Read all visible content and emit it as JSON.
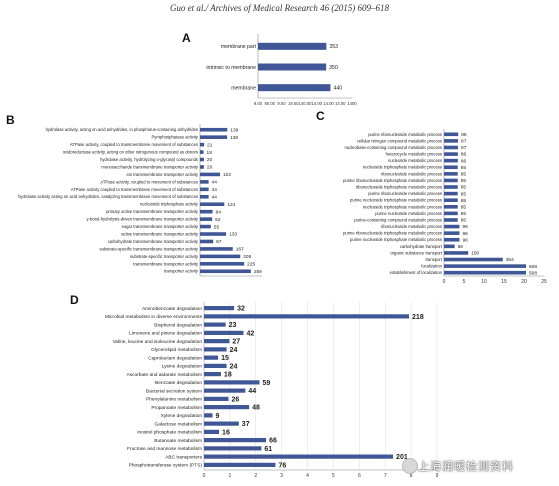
{
  "header": "Guo et al./ Archives of Medical Research 46 (2015) 609–618",
  "watermark": "上海润暖检测资料",
  "colors": {
    "bar": "#3f5796",
    "axis": "#888888",
    "grid": "#dddddd"
  },
  "chart_data": [
    {
      "panel": "A",
      "type": "bar",
      "orientation": "horizontal",
      "categories": [
        "membrane part",
        "intrinsic to membrane",
        "membrane"
      ],
      "values": [
        353,
        350,
        440
      ],
      "data_labels": [
        "353",
        "350",
        "440"
      ],
      "xscale": "log",
      "xlim": [
        9,
        1400
      ],
      "tick_labels": [
        "9.00",
        "90.00",
        "9.00",
        "19.00",
        "140.00",
        "14.00",
        "14.00",
        "14.00",
        "1400"
      ]
    },
    {
      "panel": "B",
      "type": "bar",
      "orientation": "horizontal",
      "categories": [
        "hydrolase activity, acting on acid anhydrides, in phosphorus-containing anhydrides",
        "Pyrophosphatase activity",
        "ATPase activity, coupled to transmembrane movement of substances",
        "oxidoreductase activity, acting on other nitrogenous compound as donors",
        "hydrolase activity, hydrolyzing o-glycosyl compounds",
        "monosaccharide transmembrane transporter activity",
        "ion transmembrane transporter activity",
        "ATPase activity, coupled to movement of substances",
        "ATPase activity coupled to transmembrane movement of substances",
        "hydrolase activity acting on acid anhydrides, catalyzing transmembrane movement of substances",
        "nucleoside triphosphate activity",
        "primary active transmembrane transporter activity",
        "γ-bond-hydrolysis-driven transmembrane transporter activity",
        "sugar transmembrane transporter activity",
        "active transmembrane transporter activity",
        "carbohydrate transmembrane transporter activity",
        "substrate-specific transmembrane transporter activity",
        "substrate-specific transporter activity",
        "transmembrane transporter activity",
        "transporter activity"
      ],
      "values": [
        139,
        138,
        21,
        18,
        20,
        20,
        102,
        44,
        44,
        44,
        124,
        64,
        62,
        55,
        133,
        67,
        167,
        205,
        225,
        259
      ],
      "data_labels": [
        "139",
        "138",
        "21",
        "18",
        "20",
        "20",
        "102",
        "44",
        "44",
        "44",
        "124",
        "64",
        "62",
        "55",
        "133",
        "67",
        "167",
        "205",
        "225",
        "259"
      ],
      "xlim": [
        0,
        250
      ]
    },
    {
      "panel": "C",
      "type": "bar",
      "orientation": "horizontal",
      "categories": [
        "purine ribonucleotide metabolic process",
        "cellular nitrogen compound metabolic process",
        "nucleobase-containing compound metabolic process",
        "heterocycle metabolic process",
        "nucleotide metabolic process",
        "nucleoside triphosphate metabolic process",
        "ribonucleotide metabolic process",
        "purine ribonucleoside triphosphate metabolic process",
        "ribonucleoside triphosphate metabolic process",
        "purine ribonucleotide metabolic process",
        "purine nucleoside triphosphate metabolic process",
        "nucleoside triphosphate metabolic process",
        "purine nucleotide metabolic process",
        "purine-containing compound metabolic process",
        "ribonucleotide metabolic process",
        "purine ribonucleoside triphosphate metabolic process",
        "purine nucleoside triphosphate metabolic process",
        "carbohydrate transport",
        "organic substance transport",
        "transport",
        "localization",
        "establishment of localization"
      ],
      "values": [
        88,
        87,
        87,
        86,
        86,
        85,
        85,
        85,
        85,
        85,
        85,
        85,
        85,
        85,
        96,
        96,
        96,
        66,
        150,
        364,
        508,
        508
      ],
      "data_labels": [
        "88",
        "87",
        "87",
        "86",
        "86",
        "85",
        "85",
        "85",
        "85",
        "85",
        "85",
        "85",
        "85",
        "85",
        "96",
        "96",
        "96",
        "66",
        "150",
        "364",
        "508",
        "508"
      ],
      "xlim": [
        0,
        25
      ],
      "ticks": [
        "0",
        "5",
        "10",
        "15",
        "20",
        "25"
      ]
    },
    {
      "panel": "D",
      "type": "bar",
      "orientation": "horizontal",
      "categories": [
        "Aminobenzoate degradation",
        "Microbial metabolism in diverse environments",
        "Bisphenol degradation",
        "Limonene and pinene degradation",
        "Valine, leucine and isoleucine degradation",
        "Glycerolipid metabolism",
        "Caprolactam degradation",
        "Lysine degradation",
        "Ascorbate and aldarate metabolism",
        "Benzoate degradation",
        "Bacterial secretion system",
        "Phenylalanine metabolism",
        "Propanoate metabolism",
        "Xylene degradation",
        "Galactose metabolism",
        "Inositol phosphate metabolism",
        "Butanoate metabolism",
        "Fructose and mannose metabolism",
        "ABC transporters",
        "Phosphotransferase system (PTS)"
      ],
      "values": [
        32,
        218,
        23,
        42,
        27,
        24,
        15,
        24,
        18,
        59,
        44,
        26,
        48,
        9,
        37,
        16,
        66,
        61,
        201,
        76
      ],
      "data_labels": [
        "32",
        "218",
        "23",
        "42",
        "27",
        "24",
        "15",
        "24",
        "18",
        "59",
        "44",
        "26",
        "48",
        "9",
        "37",
        "16",
        "66",
        "61",
        "201",
        "76"
      ],
      "xlim": [
        0,
        9
      ],
      "ticks": [
        "0",
        "1",
        "2",
        "3",
        "4",
        "5",
        "6",
        "7",
        "8",
        "9"
      ]
    }
  ]
}
